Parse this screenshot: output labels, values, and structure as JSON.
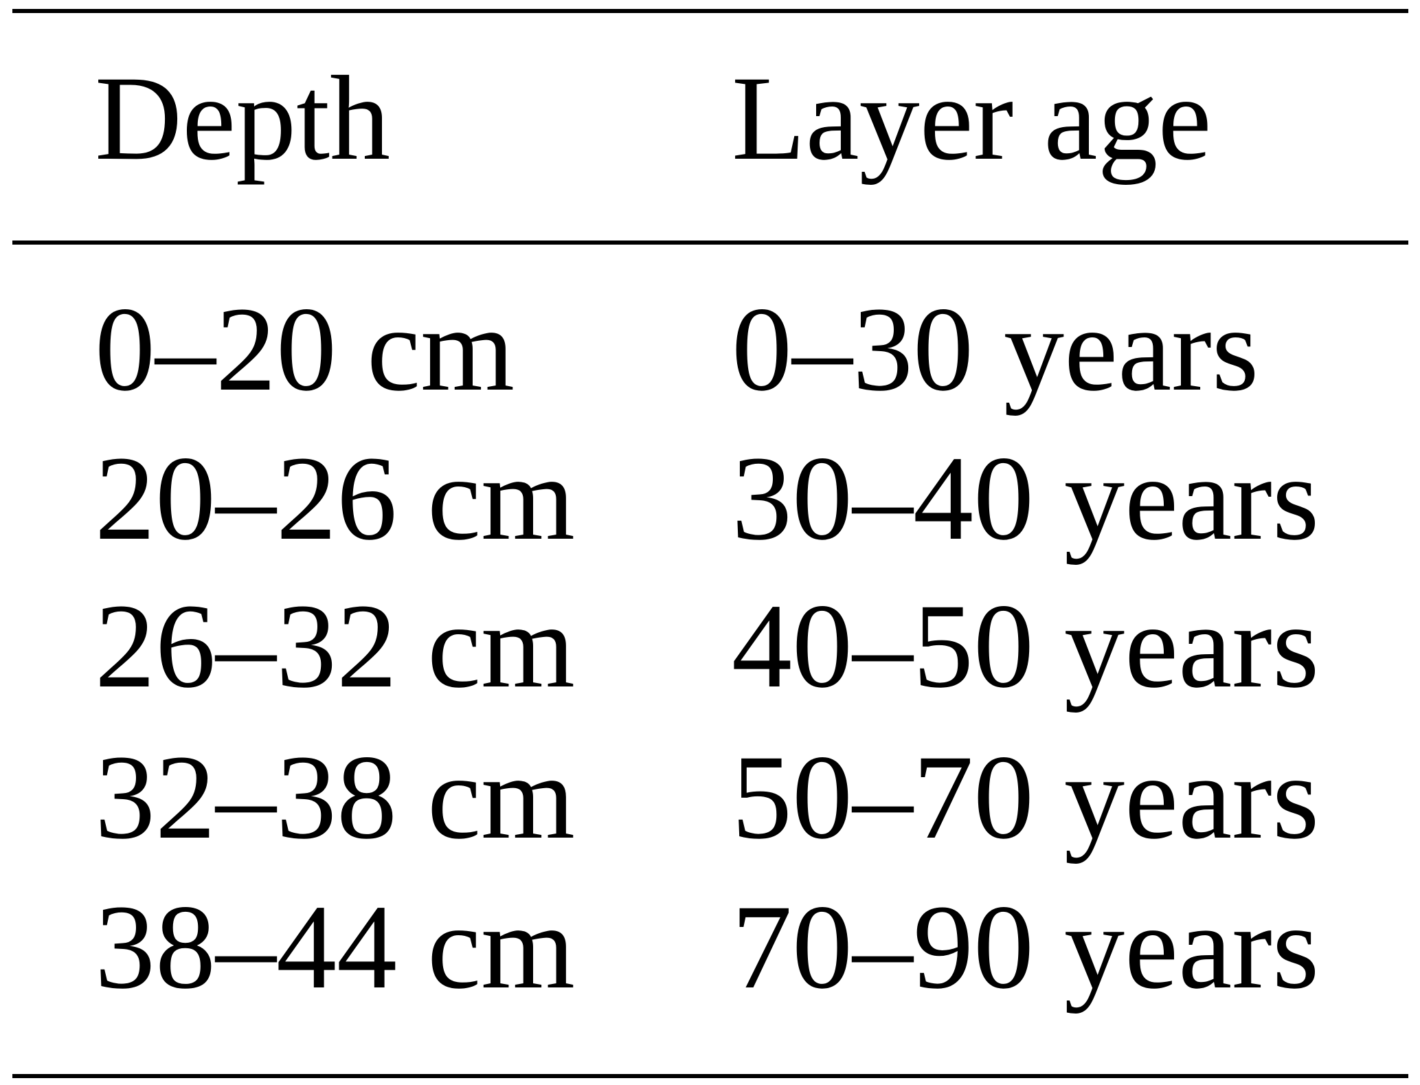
{
  "table": {
    "header": [
      "Depth",
      "Layer age"
    ],
    "rows": [
      [
        "0–20 cm",
        "0–30 years"
      ],
      [
        "20–26 cm",
        "30–40 years"
      ],
      [
        "26–32 cm",
        "40–50 years"
      ],
      [
        "32–38 cm",
        "50–70 years"
      ],
      [
        "38–44 cm",
        "70–90 years"
      ]
    ]
  }
}
